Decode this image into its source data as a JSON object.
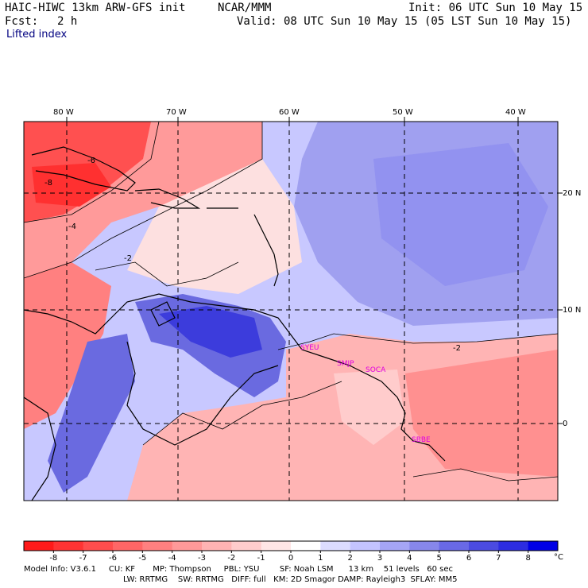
{
  "header": {
    "title": "HAIC-HIWC 13km ARW-GFS init",
    "org": "NCAR/MMM",
    "init": "Init: 06 UTC Sun 10 May 15",
    "fcst_label": "Fcst:",
    "fcst_value": "2 h",
    "valid": "Valid: 08 UTC Sun 10 May 15 (05 LST Sun 10 May 15)",
    "field": "Lifted index"
  },
  "map": {
    "lon_labels": [
      "80 W",
      "70 W",
      "60 W",
      "50 W",
      "40 W"
    ],
    "lat_labels": [
      "20 N",
      "10 N",
      "0"
    ],
    "contour_labels": [
      "-8",
      "-6",
      "-4",
      "-2",
      "-2"
    ],
    "stations": [
      "SYEU",
      "SMJP",
      "SOCA",
      "SBBE"
    ],
    "colors": {
      "strong_unstable": "#ff3030",
      "unstable": "#ff7878",
      "mild_unstable": "#ffb4b4",
      "neutral": "#fde0e0",
      "mild_stable": "#c8c8ff",
      "stable": "#8c8cf0",
      "strong_stable": "#3c3cdc",
      "coast": "#000000"
    }
  },
  "colorbar": {
    "labels": [
      "-8",
      "-7",
      "-6",
      "-5",
      "-4",
      "-3",
      "-2",
      "-1",
      "0",
      "1",
      "2",
      "3",
      "4",
      "5",
      "6",
      "7",
      "8"
    ],
    "unit": "°C",
    "colors": [
      "#ff1a1a",
      "#ff3333",
      "#ff4d4d",
      "#ff6666",
      "#ff8080",
      "#ff9999",
      "#ffb3b3",
      "#ffcccc",
      "#ffe6e6",
      "#ffffff",
      "#dcdcff",
      "#c3c3ff",
      "#a5a5f5",
      "#8787eb",
      "#6969e6",
      "#4b4be1",
      "#2d2de1",
      "#0000e6"
    ]
  },
  "footer": {
    "line1": "Model Info: V3.6.1     CU: KF       MP: Thompson     PBL: YSU        SF: Noah LSM      13 km    51 levels   60 sec",
    "line2": "LW: RRTMG    SW: RRTMG   DIFF: full   KM: 2D Smagor DAMP: Rayleigh3  SFLAY: MM5"
  }
}
